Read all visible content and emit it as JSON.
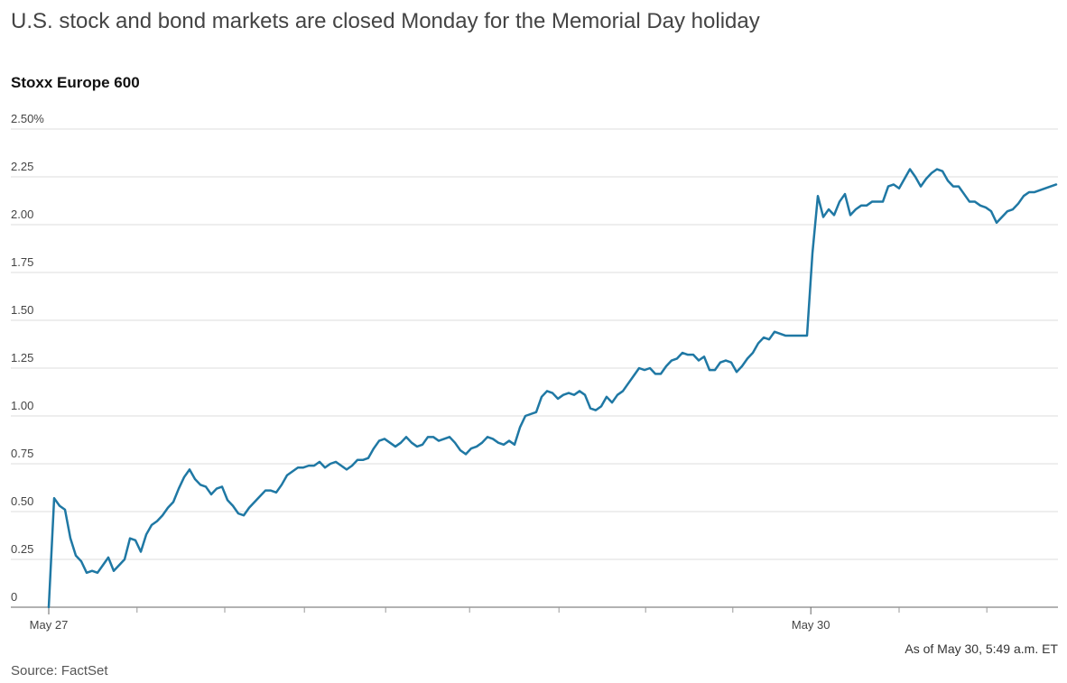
{
  "chart_data": {
    "type": "line",
    "title": "U.S. stock and bond markets are closed Monday for the Memorial Day holiday",
    "subtitle": "Stoxx Europe 600",
    "note": "As of May 30, 5:49 a.m. ET",
    "source": "Source: FactSet",
    "color": "#1f78a4",
    "grid": true,
    "xlim": [
      0,
      186
    ],
    "xticks": [
      {
        "value": 0,
        "label": "May 27"
      },
      {
        "value": 140.7,
        "label": "May 30"
      }
    ],
    "x_minor_ticks": [
      16.3,
      32.5,
      47.2,
      62.2,
      77.7,
      94.2,
      110.2,
      126.3,
      157,
      173.2
    ],
    "ylim": [
      0,
      2.5
    ],
    "yticks": [
      0,
      0.25,
      {
        "value": 0.5,
        "label": "0.50"
      },
      0.75,
      {
        "value": 1,
        "label": "1.00"
      },
      1.25,
      {
        "value": 1.5,
        "label": "1.50"
      },
      1.75,
      {
        "value": 2,
        "label": "2.00"
      },
      2.25,
      {
        "value": 2.5,
        "label": "2.50%"
      }
    ],
    "values": [
      0,
      0.57,
      0.53,
      0.51,
      0.36,
      0.27,
      0.24,
      0.18,
      0.19,
      0.18,
      0.22,
      0.26,
      0.19,
      0.22,
      0.25,
      0.36,
      0.35,
      0.29,
      0.38,
      0.43,
      0.45,
      0.48,
      0.52,
      0.55,
      0.62,
      0.68,
      0.72,
      0.67,
      0.64,
      0.63,
      0.59,
      0.62,
      0.63,
      0.56,
      0.53,
      0.49,
      0.48,
      0.52,
      0.55,
      0.58,
      0.61,
      0.61,
      0.6,
      0.64,
      0.69,
      0.71,
      0.73,
      0.73,
      0.74,
      0.74,
      0.76,
      0.73,
      0.75,
      0.76,
      0.74,
      0.72,
      0.74,
      0.77,
      0.77,
      0.78,
      0.83,
      0.87,
      0.88,
      0.86,
      0.84,
      0.86,
      0.89,
      0.86,
      0.84,
      0.85,
      0.89,
      0.89,
      0.87,
      0.88,
      0.89,
      0.86,
      0.82,
      0.8,
      0.83,
      0.84,
      0.86,
      0.89,
      0.88,
      0.86,
      0.85,
      0.87,
      0.85,
      0.94,
      1.0,
      1.01,
      1.02,
      1.1,
      1.13,
      1.12,
      1.09,
      1.11,
      1.12,
      1.11,
      1.13,
      1.11,
      1.04,
      1.03,
      1.05,
      1.1,
      1.07,
      1.11,
      1.13,
      1.17,
      1.21,
      1.25,
      1.24,
      1.25,
      1.22,
      1.22,
      1.26,
      1.29,
      1.3,
      1.33,
      1.32,
      1.32,
      1.29,
      1.31,
      1.24,
      1.24,
      1.28,
      1.29,
      1.28,
      1.23,
      1.26,
      1.3,
      1.33,
      1.38,
      1.41,
      1.4,
      1.44,
      1.43,
      1.42,
      1.42,
      1.42,
      1.42,
      1.42,
      1.85,
      2.15,
      2.04,
      2.08,
      2.05,
      2.12,
      2.16,
      2.05,
      2.08,
      2.1,
      2.1,
      2.12,
      2.12,
      2.12,
      2.2,
      2.21,
      2.19,
      2.24,
      2.29,
      2.25,
      2.2,
      2.24,
      2.27,
      2.29,
      2.28,
      2.23,
      2.2,
      2.2,
      2.16,
      2.12,
      2.12,
      2.1,
      2.09,
      2.07,
      2.01,
      2.04,
      2.07,
      2.08,
      2.11,
      2.15,
      2.17,
      2.17,
      2.18,
      2.19,
      2.2,
      2.21
    ]
  }
}
